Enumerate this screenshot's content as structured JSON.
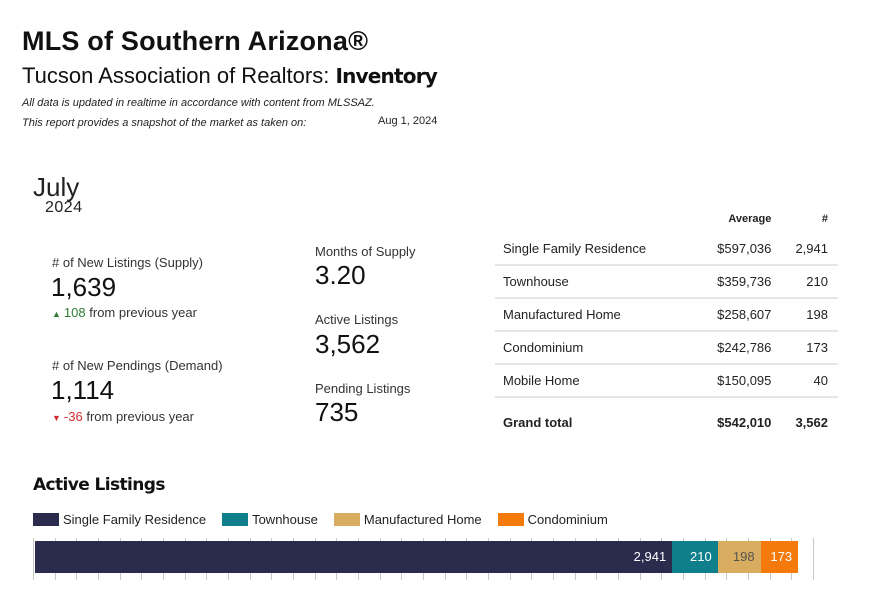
{
  "header": {
    "title": "MLS of Southern Arizona®",
    "subtitle_prefix": "Tucson Association of Realtors:",
    "subtitle_bold": "Inventory",
    "note1": "All data is updated in realtime in accordance with content from MLSSAZ.",
    "note2": "This report provides a snapshot of the market as taken on:",
    "snapshot_date": "Aug 1, 2024"
  },
  "period": {
    "month": "July",
    "year": "2024"
  },
  "kpis": {
    "new_listings": {
      "label": "# of New Listings (Supply)",
      "value": "1,639",
      "change": "108",
      "change_text": "from previous year",
      "direction": "up"
    },
    "new_pendings": {
      "label": "# of New Pendings (Demand)",
      "value": "1,114",
      "change": "-36",
      "change_text": "from previous year",
      "direction": "down"
    },
    "months_supply": {
      "label": "Months of Supply",
      "value": "3.20"
    },
    "active_listings": {
      "label": "Active Listings",
      "value": "3,562"
    },
    "pending_listings": {
      "label": "Pending Listings",
      "value": "735"
    }
  },
  "summary_table": {
    "headers": [
      "",
      "Average",
      "#"
    ],
    "rows": [
      {
        "type": "Single Family Residence",
        "average": "$597,036",
        "count": "2,941"
      },
      {
        "type": "Townhouse",
        "average": "$359,736",
        "count": "210"
      },
      {
        "type": "Manufactured Home",
        "average": "$258,607",
        "count": "198"
      },
      {
        "type": "Condominium",
        "average": "$242,786",
        "count": "173"
      },
      {
        "type": "Mobile Home",
        "average": "$150,095",
        "count": "40"
      }
    ],
    "total": {
      "type": "Grand total",
      "average": "$542,010",
      "count": "3,562"
    }
  },
  "active_listings_chart": {
    "title": "Active Listings",
    "legend": [
      {
        "name": "Single Family Residence",
        "color": "#2b2b4e"
      },
      {
        "name": "Townhouse",
        "color": "#0f7f8c"
      },
      {
        "name": "Manufactured Home",
        "color": "#d9ad60"
      },
      {
        "name": "Condominium",
        "color": "#f47a0c"
      }
    ]
  },
  "chart_data": {
    "type": "bar",
    "orientation": "horizontal-stacked",
    "title": "Active Listings",
    "series": [
      {
        "name": "Single Family Residence",
        "value": 2941,
        "label": "2,941",
        "color": "#2b2b4e"
      },
      {
        "name": "Townhouse",
        "value": 210,
        "label": "210",
        "color": "#0f7f8c"
      },
      {
        "name": "Manufactured Home",
        "value": 198,
        "label": "198",
        "color": "#d9ad60"
      },
      {
        "name": "Condominium",
        "value": 173,
        "label": "173",
        "color": "#f47a0c"
      },
      {
        "name": "Mobile Home",
        "value": 40,
        "label": "",
        "color": "#ffffff"
      }
    ],
    "xlim": [
      0,
      3600
    ],
    "grid": true
  }
}
